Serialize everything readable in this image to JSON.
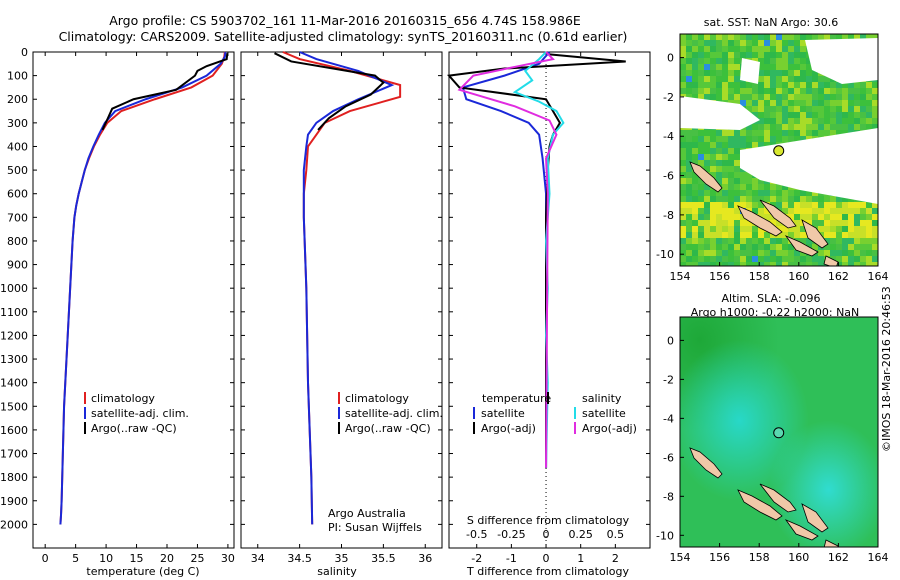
{
  "header": {
    "line1": "Argo profile: CS 5903702_161 11-Mar-2016 20160315_656 4.74S 158.986E",
    "line2": "Climatology: CARS2009. Satellite-adjusted climatology: synTS_20160311.nc (0.61d earlier)"
  },
  "colors": {
    "climatology": "#e02020",
    "satellite": "#1a28d8",
    "argo": "#000000",
    "sat_salinity": "#22dce8",
    "argo_salinity": "#e02ce0"
  },
  "chart_data": [
    {
      "type": "line",
      "panel": "temperature",
      "xlabel": "temperature (deg C)",
      "xlim": [
        -2,
        31
      ],
      "ylim": [
        2100,
        0
      ],
      "y_reversed": true,
      "xticks": [
        0,
        5,
        10,
        15,
        20,
        25,
        30
      ],
      "yticks": [
        0,
        100,
        200,
        300,
        400,
        500,
        600,
        700,
        800,
        900,
        1000,
        1100,
        1200,
        1300,
        1400,
        1500,
        1600,
        1700,
        1800,
        1900,
        2000
      ],
      "legend": {
        "position": "lower-left",
        "entries": [
          "climatology",
          "satellite-adj. clim.",
          "Argo(..raw -QC)"
        ]
      },
      "series": [
        {
          "name": "climatology",
          "x": [
            29.5,
            29.4,
            29.0,
            27.5,
            24.0,
            18.0,
            12.5,
            10.2,
            9.0,
            8.0,
            7.2,
            6.5,
            6.0,
            5.5,
            5.1,
            4.8,
            4.5,
            4.3,
            4.1,
            3.9,
            3.7,
            3.5,
            3.3,
            3.1,
            3.0,
            2.9,
            2.8,
            2.7,
            2.6,
            2.5
          ],
          "y": [
            0,
            20,
            50,
            100,
            150,
            200,
            250,
            300,
            350,
            400,
            450,
            500,
            550,
            600,
            650,
            700,
            800,
            900,
            1000,
            1100,
            1200,
            1300,
            1400,
            1500,
            1600,
            1700,
            1800,
            1900,
            1960,
            2000
          ]
        },
        {
          "name": "satellite-adj. clim.",
          "x": [
            29.6,
            29.5,
            28.8,
            26.5,
            22.5,
            16.5,
            11.5,
            9.8,
            8.8,
            7.9,
            7.1,
            6.5,
            6.0,
            5.5,
            5.1,
            4.8,
            4.5,
            4.3,
            4.1,
            3.9,
            3.7,
            3.5,
            3.3,
            3.1,
            3.0,
            2.9,
            2.8,
            2.7,
            2.6,
            2.5
          ],
          "y": [
            0,
            20,
            50,
            100,
            150,
            200,
            250,
            300,
            350,
            400,
            450,
            500,
            550,
            600,
            650,
            700,
            800,
            900,
            1000,
            1100,
            1200,
            1300,
            1400,
            1500,
            1600,
            1700,
            1800,
            1900,
            1960,
            2000
          ]
        },
        {
          "name": "Argo(..raw -QC)",
          "x": [
            29.9,
            29.8,
            26.5,
            25.0,
            24.6,
            21.5,
            14.5,
            11.0,
            10.3,
            9.4
          ],
          "y": [
            5,
            30,
            60,
            80,
            100,
            160,
            200,
            240,
            280,
            330
          ]
        }
      ]
    },
    {
      "type": "line",
      "panel": "salinity",
      "xlabel": "salinity",
      "xlim": [
        33.8,
        36.2
      ],
      "ylim": [
        2100,
        0
      ],
      "y_reversed": true,
      "xticks": [
        34,
        34.5,
        35,
        35.5,
        36
      ],
      "legend": {
        "position": "lower-left",
        "entries": [
          "climatology",
          "satellite-adj. clim.",
          "Argo(..raw -QC)"
        ]
      },
      "annotation": [
        "Argo Australia",
        "PI: Susan Wijffels"
      ],
      "series": [
        {
          "name": "climatology",
          "x": [
            34.3,
            34.5,
            35.1,
            35.7,
            35.7,
            35.1,
            34.8,
            34.7,
            34.6,
            34.58,
            34.55,
            34.55,
            34.56,
            34.57,
            34.58,
            34.59,
            34.6,
            34.61,
            34.62,
            34.63,
            34.64,
            34.65
          ],
          "y": [
            0,
            30,
            80,
            140,
            190,
            250,
            300,
            350,
            400,
            500,
            600,
            700,
            800,
            900,
            1000,
            1200,
            1400,
            1500,
            1600,
            1700,
            1800,
            2000
          ]
        },
        {
          "name": "satellite-adj. clim.",
          "x": [
            34.5,
            34.7,
            35.2,
            35.6,
            35.2,
            34.9,
            34.7,
            34.6,
            34.58,
            34.55,
            34.55,
            34.56,
            34.57,
            34.58,
            34.59,
            34.6,
            34.61,
            34.62,
            34.63,
            34.64,
            34.65
          ],
          "y": [
            0,
            30,
            80,
            140,
            200,
            250,
            300,
            350,
            400,
            500,
            700,
            800,
            900,
            1000,
            1200,
            1400,
            1500,
            1600,
            1700,
            1800,
            2000
          ]
        },
        {
          "name": "Argo(..raw -QC)",
          "x": [
            34.2,
            34.4,
            35.4,
            35.5,
            35.35,
            35.05,
            34.85,
            34.72
          ],
          "y": [
            5,
            40,
            100,
            130,
            180,
            230,
            280,
            330
          ]
        }
      ]
    },
    {
      "type": "line",
      "panel": "difference",
      "xlabel": "T difference from climatology",
      "x2label": "S difference from climatology",
      "xlim": [
        -2.8,
        3.0
      ],
      "ylim": [
        2100,
        0
      ],
      "y_reversed": true,
      "xticks": [
        -2,
        -1,
        0,
        1,
        2
      ],
      "x2ticks": [
        -0.5,
        -0.25,
        0,
        0.25,
        0.5
      ],
      "legend": {
        "position": "lower-center",
        "groups": {
          "temperature": [
            "satellite",
            "Argo(-adj)"
          ],
          "salinity": [
            "satellite",
            "Argo(-adj)"
          ]
        }
      },
      "series": [
        {
          "name": "satellite",
          "group": "temperature",
          "x": [
            0.1,
            -0.2,
            -1.2,
            -2.4,
            -2.3,
            -1.3,
            -0.5,
            -0.2,
            -0.1,
            0.0,
            0.0,
            0.0,
            0.0,
            0.0,
            0.0,
            0.0
          ],
          "y": [
            0,
            50,
            100,
            150,
            200,
            250,
            300,
            350,
            450,
            600,
            800,
            1000,
            1200,
            1400,
            1600,
            1760
          ]
        },
        {
          "name": "Argo(-adj)",
          "group": "temperature",
          "x": [
            0.1,
            2.3,
            -1.2,
            -2.8,
            -2.5,
            0.0,
            0.4,
            0.2,
            0.1,
            0.05,
            0.0,
            0.0,
            0.0,
            0.0
          ],
          "y": [
            10,
            40,
            70,
            100,
            150,
            200,
            300,
            350,
            400,
            500,
            700,
            1000,
            1400,
            1760
          ]
        },
        {
          "name": "satellite",
          "group": "salinity",
          "x": [
            0.0,
            -0.2,
            -0.6,
            -0.4,
            -0.9,
            -0.2,
            0.3,
            0.5,
            0.2,
            0.05,
            0.1,
            0.0,
            0.05,
            0.0,
            0.05,
            0.0
          ],
          "y": [
            0,
            30,
            80,
            120,
            170,
            210,
            250,
            300,
            350,
            450,
            600,
            800,
            1000,
            1200,
            1400,
            1760
          ]
        },
        {
          "name": "Argo(-adj)",
          "group": "salinity",
          "x": [
            0.0,
            0.2,
            -0.8,
            -2.1,
            -2.5,
            -0.9,
            0.1,
            0.3,
            0.0,
            0.05,
            0.0
          ],
          "y": [
            0,
            30,
            60,
            100,
            160,
            230,
            290,
            350,
            450,
            600,
            1760
          ]
        }
      ]
    }
  ],
  "maps": {
    "sst": {
      "title": "sat. SST: NaN Argo: 30.6",
      "xticks": [
        "154",
        "156",
        "158",
        "160",
        "162",
        "164"
      ],
      "yticks": [
        "0",
        "-2",
        "-4",
        "-6",
        "-8",
        "-10"
      ],
      "argo_position": {
        "lon": 158.986,
        "lat": -4.74
      }
    },
    "sla": {
      "title_line1": "Altim. SLA: -0.096",
      "title_line2": "Argo h1000: -0.22 h2000: NaN",
      "xticks": [
        "154",
        "156",
        "158",
        "160",
        "162",
        "164"
      ],
      "yticks": [
        "0",
        "-2",
        "-4",
        "-6",
        "-8",
        "-10"
      ],
      "argo_position": {
        "lon": 158.986,
        "lat": -4.74
      }
    }
  },
  "stamp": "©IMOS 18-Mar-2016 20:46:53"
}
